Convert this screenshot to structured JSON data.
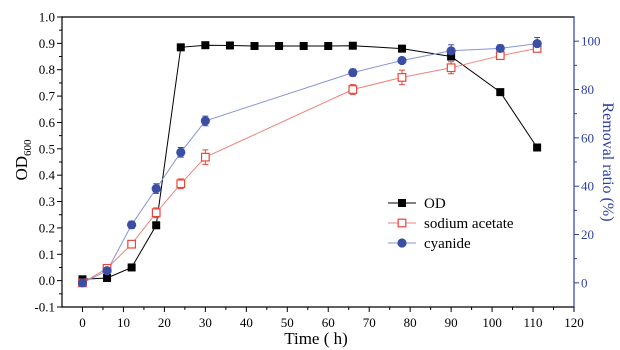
{
  "chart_data": {
    "type": "line",
    "grid": false,
    "x_axis": {
      "label": "Time ( h)",
      "lim": [
        -5,
        120
      ],
      "tick_labels": [
        "0",
        "10",
        "20",
        "30",
        "40",
        "50",
        "60",
        "70",
        "80",
        "90",
        "100",
        "110",
        "120"
      ]
    },
    "y_left": {
      "label": "OD",
      "label_subscript": "600",
      "lim": [
        -0.1,
        1.0
      ],
      "tick_labels": [
        "-0.1",
        "0.0",
        "0.1",
        "0.2",
        "0.3",
        "0.4",
        "0.5",
        "0.6",
        "0.7",
        "0.8",
        "0.9",
        "1.0"
      ],
      "color": "#000000"
    },
    "y_right": {
      "label": "Removal ratio (%)",
      "lim": [
        -10,
        110
      ],
      "tick_labels": [
        "0",
        "20",
        "40",
        "60",
        "80",
        "100"
      ],
      "color": "#2e40a0"
    },
    "legend": {
      "placement": "lower-right",
      "frame": false
    },
    "series": [
      {
        "name": "OD",
        "axis": "left",
        "marker": "filled-square",
        "color": "#000000",
        "line_color": "#000000",
        "x": [
          0,
          6,
          12,
          18,
          24,
          30,
          36,
          42,
          48,
          54,
          60,
          66,
          78,
          90,
          102,
          111
        ],
        "y": [
          0.005,
          0.01,
          0.05,
          0.21,
          0.885,
          0.893,
          0.892,
          0.89,
          0.89,
          0.89,
          0.89,
          0.891,
          0.88,
          0.85,
          0.715,
          0.505
        ]
      },
      {
        "name": "sodium acetate",
        "axis": "right",
        "marker": "open-square",
        "color": "#e8453c",
        "line_color": "#f0827c",
        "x": [
          0,
          6,
          12,
          18,
          24,
          30,
          66,
          78,
          90,
          102,
          111
        ],
        "y": [
          0,
          6,
          16,
          29,
          41,
          52,
          80,
          85,
          89,
          94,
          97
        ],
        "yerr": [
          0.8,
          1,
          1,
          2,
          2,
          3,
          2,
          3,
          2.5,
          1.5,
          1.5
        ]
      },
      {
        "name": "cyanide",
        "axis": "right",
        "marker": "filled-circle",
        "color": "#3b4ea6",
        "line_color": "#8594d4",
        "x": [
          0,
          6,
          12,
          18,
          24,
          30,
          66,
          78,
          90,
          102,
          111
        ],
        "y": [
          0,
          5,
          24,
          39,
          54,
          67,
          87,
          92,
          96,
          97,
          99
        ],
        "yerr": [
          0.8,
          1,
          1.5,
          2,
          2,
          2,
          1.5,
          1,
          2.5,
          1.5,
          2.5
        ]
      }
    ]
  }
}
